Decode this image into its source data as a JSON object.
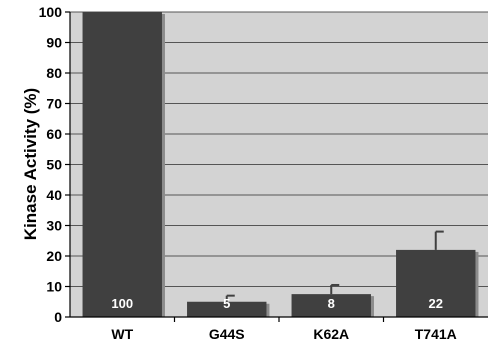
{
  "chart_data": {
    "type": "bar",
    "categories": [
      "WT",
      "G44S",
      "K62A",
      "T741A"
    ],
    "values": [
      100,
      5,
      7.5,
      22
    ],
    "error_high": [
      100,
      7,
      10.5,
      28
    ],
    "data_labels": [
      "100",
      "5",
      "8",
      "22"
    ],
    "ylabel": "Kinase Activity (%)",
    "xlabel": "",
    "ylim": [
      0,
      100
    ],
    "yticks": [
      0,
      10,
      20,
      30,
      40,
      50,
      60,
      70,
      80,
      90,
      100
    ],
    "grid": true,
    "legend": "none",
    "colors": {
      "plot_background": "#d3d3d3",
      "bar": "#404040",
      "bar_shadow": "#8c8c8c",
      "grid": "#555555",
      "data_label": "#ffffff",
      "text": "#000000"
    }
  }
}
